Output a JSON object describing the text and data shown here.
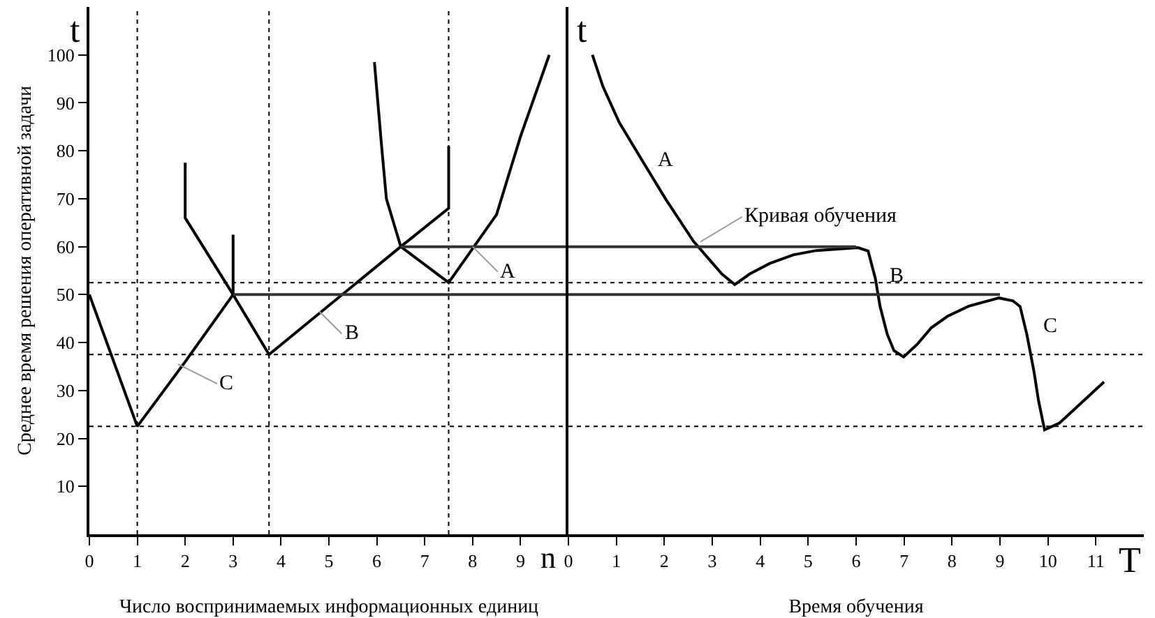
{
  "chart_data": [
    {
      "type": "line",
      "ylabel": "Среднее время решения оперативной задачи",
      "xlabel": "Число воспринимаемых информационных единиц",
      "xlim": [
        0,
        10
      ],
      "ylim": [
        0,
        110
      ],
      "xticks": [
        0,
        1,
        2,
        3,
        4,
        5,
        6,
        7,
        8,
        9
      ],
      "yticks": [
        10,
        20,
        30,
        40,
        50,
        60,
        70,
        80,
        90,
        100
      ],
      "grid": false,
      "marker": "none",
      "line_style": "solid",
      "series": [
        {
          "color": "#000000",
          "x": [
            0,
            1,
            2,
            3,
            3
          ],
          "values": [
            50,
            22.5,
            36,
            50,
            62.5
          ]
        },
        {
          "color": "#000000",
          "x": [
            2,
            2,
            3,
            3.75,
            6.5,
            7.5,
            7.5
          ],
          "values": [
            77.5,
            66,
            50,
            37.5,
            60,
            68,
            81
          ]
        },
        {
          "color": "#000000",
          "x": [
            5.95,
            6.1,
            6.2,
            6.5,
            7.5,
            8.5,
            9,
            9.6
          ],
          "values": [
            98.5,
            81,
            70,
            60,
            52.5,
            66.7,
            83,
            100
          ]
        },
        {
          "color": "#333333",
          "x": [
            6.5,
            10
          ],
          "values": [
            60,
            60
          ]
        },
        {
          "color": "#333333",
          "x": [
            3,
            10
          ],
          "values": [
            50,
            50
          ]
        }
      ],
      "ref_lines": [
        {
          "axis": "x",
          "value": 1,
          "color": "#000000",
          "line_style": "dotted"
        },
        {
          "axis": "x",
          "value": 3.75,
          "color": "#000000",
          "line_style": "dotted"
        },
        {
          "axis": "x",
          "value": 7.5,
          "color": "#000000",
          "line_style": "dotted"
        },
        {
          "axis": "y",
          "value": 52.5,
          "color": "#000000",
          "line_style": "dotted"
        },
        {
          "axis": "y",
          "value": 37.5,
          "color": "#000000",
          "line_style": "dotted"
        },
        {
          "axis": "y",
          "value": 22.5,
          "color": "#000000",
          "line_style": "dotted"
        }
      ],
      "annotations": [
        {
          "text": "A",
          "x": 8,
          "y": 60
        },
        {
          "text": "B",
          "x": 4.8,
          "y": 46.5
        },
        {
          "text": "C",
          "x": 1.85,
          "y": 35.5
        },
        "t",
        "n"
      ]
    },
    {
      "type": "line",
      "xlabel": "Время обучения",
      "xlim": [
        0,
        12
      ],
      "ylim": [
        0,
        110
      ],
      "xticks": [
        0,
        1,
        2,
        3,
        4,
        5,
        6,
        7,
        8,
        9,
        10,
        11
      ],
      "tick_labels": "x",
      "grid": false,
      "marker": "none",
      "line_style": "solid",
      "series": [
        {
          "color": "#000000",
          "x": [
            0.5,
            0.72,
            1.06,
            1.5,
            2.03,
            2.61,
            3.2,
            3.47,
            3.78,
            4.2,
            4.69,
            5.17,
            6.04,
            6.25,
            6.4,
            6.5,
            6.65,
            6.79,
            6.99,
            7.28,
            7.57,
            7.91,
            8.35,
            8.98,
            9.27,
            9.42,
            9.56,
            9.71,
            9.8,
            9.93,
            10.24,
            11.17
          ],
          "values": [
            100,
            93.4,
            85.9,
            78.6,
            69.9,
            61.1,
            54.3,
            52.1,
            54.3,
            56.5,
            58.3,
            59.2,
            59.8,
            59.1,
            53.4,
            47.5,
            41.7,
            38.3,
            37,
            39.7,
            43.1,
            45.5,
            47.6,
            49.3,
            48.7,
            47.5,
            41.7,
            33.9,
            28.1,
            21.8,
            23.2,
            31.8
          ]
        },
        {
          "color": "#333333",
          "x": [
            0,
            6
          ],
          "values": [
            60,
            60
          ]
        },
        {
          "color": "#333333",
          "x": [
            0,
            9
          ],
          "values": [
            50,
            50
          ]
        }
      ],
      "ref_lines": [
        {
          "axis": "y",
          "value": 52.5,
          "color": "#000000",
          "line_style": "dotted"
        },
        {
          "axis": "y",
          "value": 37.5,
          "color": "#000000",
          "line_style": "dotted"
        },
        {
          "axis": "y",
          "value": 22.5,
          "color": "#000000",
          "line_style": "dotted"
        }
      ],
      "annotations": [
        {
          "text": "A",
          "x": 1.5,
          "y": 78.6
        },
        {
          "text": "Кривая обучения",
          "x": 2.75,
          "y": 61
        },
        {
          "text": "B",
          "x": 6.4,
          "y": 53.4
        },
        {
          "text": "C",
          "x": 9.56,
          "y": 41.7
        },
        "t",
        "T"
      ]
    }
  ]
}
